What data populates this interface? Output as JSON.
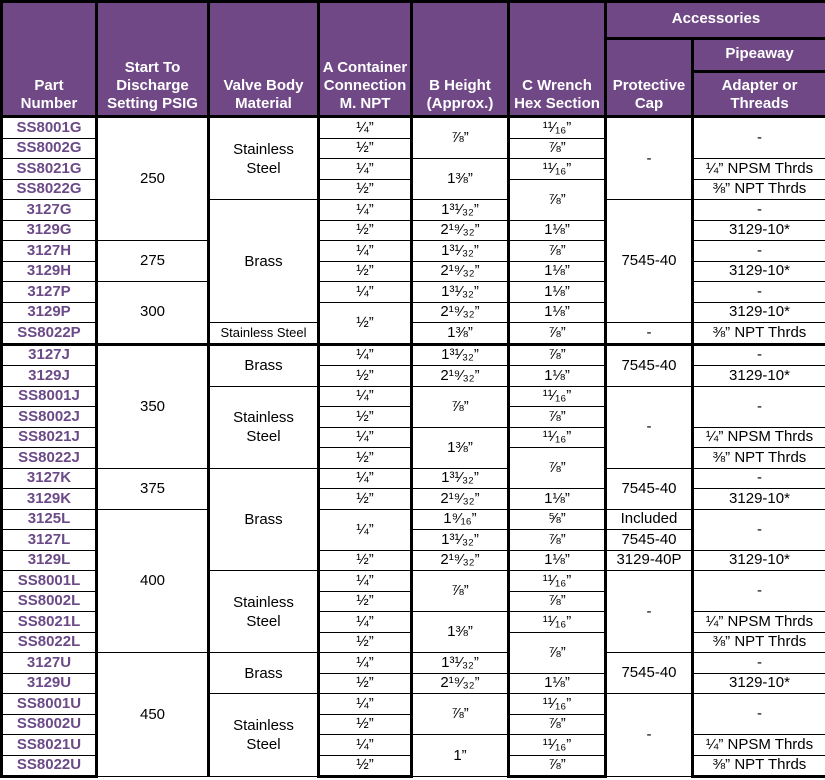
{
  "colors": {
    "header_bg": "#6f4885",
    "part_text": "#6b4a87"
  },
  "header": {
    "part_number": "Part Number",
    "start_to_discharge": "Start To Discharge Setting PSIG",
    "valve_body": "Valve Body Material",
    "a": "A Container Connection M. NPT",
    "b": "B Height (Approx.)",
    "c": "C Wrench Hex Section",
    "accessories": "Accessories",
    "protective_cap": "Protective Cap",
    "pipeaway": "Pipeaway",
    "adapter": "Adapter or Threads"
  },
  "part_numbers": [
    "SS8001G",
    "SS8002G",
    "SS8021G",
    "SS8022G",
    "3127G",
    "3129G",
    "3127H",
    "3129H",
    "3127P",
    "3129P",
    "SS8022P",
    "3127J",
    "3129J",
    "SS8001J",
    "SS8002J",
    "SS8021J",
    "SS8022J",
    "3127K",
    "3129K",
    "3125L",
    "3127L",
    "3129L",
    "SS8001L",
    "SS8002L",
    "SS8021L",
    "SS8022L",
    "3127U",
    "3129U",
    "SS8001U",
    "SS8002U",
    "SS8021U",
    "SS8022U"
  ],
  "pressure": [
    {
      "v": "250",
      "rows": 6
    },
    {
      "v": "275",
      "rows": 2
    },
    {
      "v": "300",
      "rows": 3
    },
    {
      "v": "350",
      "rows": 6
    },
    {
      "v": "375",
      "rows": 2
    },
    {
      "v": "400",
      "rows": 7
    },
    {
      "v": "450",
      "rows": 6
    }
  ],
  "valve_body": [
    {
      "v": "Stainless Steel",
      "rows": 4
    },
    {
      "v": "Brass",
      "rows": 6
    },
    {
      "v": "Stainless Steel",
      "rows": 1
    },
    {
      "v": "Brass",
      "rows": 2
    },
    {
      "v": "Stainless Steel",
      "rows": 4
    },
    {
      "v": "Brass",
      "rows": 5
    },
    {
      "v": "Stainless Steel",
      "rows": 4
    },
    {
      "v": "Brass",
      "rows": 2
    },
    {
      "v": "Stainless Steel",
      "rows": 4
    }
  ],
  "a": [
    {
      "v": "¼”",
      "rows": 1
    },
    {
      "v": "½”",
      "rows": 1
    },
    {
      "v": "¼”",
      "rows": 1
    },
    {
      "v": "½”",
      "rows": 1
    },
    {
      "v": "¼”",
      "rows": 1
    },
    {
      "v": "½”",
      "rows": 1
    },
    {
      "v": "¼”",
      "rows": 1
    },
    {
      "v": "½”",
      "rows": 1
    },
    {
      "v": "¼”",
      "rows": 1
    },
    {
      "v": "½”",
      "rows": 2
    },
    {
      "v": "¼”",
      "rows": 1
    },
    {
      "v": "½”",
      "rows": 1
    },
    {
      "v": "¼”",
      "rows": 1
    },
    {
      "v": "½”",
      "rows": 1
    },
    {
      "v": "¼”",
      "rows": 1
    },
    {
      "v": "½”",
      "rows": 1
    },
    {
      "v": "¼”",
      "rows": 1
    },
    {
      "v": "½”",
      "rows": 1
    },
    {
      "v": "¼”",
      "rows": 2
    },
    {
      "v": "½”",
      "rows": 1
    },
    {
      "v": "¼”",
      "rows": 1
    },
    {
      "v": "½”",
      "rows": 1
    },
    {
      "v": "¼”",
      "rows": 1
    },
    {
      "v": "½”",
      "rows": 1
    },
    {
      "v": "¼”",
      "rows": 1
    },
    {
      "v": "½”",
      "rows": 1
    },
    {
      "v": "¼”",
      "rows": 1
    },
    {
      "v": "½”",
      "rows": 1
    },
    {
      "v": "¼”",
      "rows": 1
    },
    {
      "v": "½”",
      "rows": 1
    }
  ],
  "b": [
    {
      "v": "⅞”",
      "rows": 2
    },
    {
      "v": "1⅜”",
      "rows": 2
    },
    {
      "v": "1³¹⁄₃₂”",
      "rows": 1
    },
    {
      "v": "2¹⁹⁄₃₂”",
      "rows": 1
    },
    {
      "v": "1³¹⁄₃₂”",
      "rows": 1
    },
    {
      "v": "2¹⁹⁄₃₂”",
      "rows": 1
    },
    {
      "v": "1³¹⁄₃₂”",
      "rows": 1
    },
    {
      "v": "2¹⁹⁄₃₂”",
      "rows": 1
    },
    {
      "v": "1⅜”",
      "rows": 1
    },
    {
      "v": "1³¹⁄₃₂”",
      "rows": 1
    },
    {
      "v": "2¹⁹⁄₃₂”",
      "rows": 1
    },
    {
      "v": "⅞”",
      "rows": 2
    },
    {
      "v": "1⅜”",
      "rows": 2
    },
    {
      "v": "1³¹⁄₃₂”",
      "rows": 1
    },
    {
      "v": "2¹⁹⁄₃₂”",
      "rows": 1
    },
    {
      "v": "1⁹⁄₁₆”",
      "rows": 1
    },
    {
      "v": "1³¹⁄₃₂”",
      "rows": 1
    },
    {
      "v": "2¹⁹⁄₃₂”",
      "rows": 1
    },
    {
      "v": "⅞”",
      "rows": 2
    },
    {
      "v": "1⅜”",
      "rows": 2
    },
    {
      "v": "1³¹⁄₃₂”",
      "rows": 1
    },
    {
      "v": "2¹⁹⁄₃₂”",
      "rows": 1
    },
    {
      "v": "⅞”",
      "rows": 2
    },
    {
      "v": "1”",
      "rows": 2
    }
  ],
  "c": [
    {
      "v": "¹¹⁄₁₆”",
      "rows": 1
    },
    {
      "v": "⅞”",
      "rows": 1
    },
    {
      "v": "¹¹⁄₁₆”",
      "rows": 1
    },
    {
      "v": "⅞”",
      "rows": 2
    },
    {
      "v": "1⅛”",
      "rows": 1
    },
    {
      "v": "⅞”",
      "rows": 1
    },
    {
      "v": "1⅛”",
      "rows": 1
    },
    {
      "v": "1⅛”",
      "rows": 1
    },
    {
      "v": "1⅛”",
      "rows": 1
    },
    {
      "v": "⅞”",
      "rows": 1
    },
    {
      "v": "⅞”",
      "rows": 1
    },
    {
      "v": "1⅛”",
      "rows": 1
    },
    {
      "v": "¹¹⁄₁₆”",
      "rows": 1
    },
    {
      "v": "⅞”",
      "rows": 1
    },
    {
      "v": "¹¹⁄₁₆”",
      "rows": 1
    },
    {
      "v": "⅞”",
      "rows": 2
    },
    {
      "v": "1⅛”",
      "rows": 1
    },
    {
      "v": "⅝”",
      "rows": 1
    },
    {
      "v": "⅞”",
      "rows": 1
    },
    {
      "v": "1⅛”",
      "rows": 1
    },
    {
      "v": "¹¹⁄₁₆”",
      "rows": 1
    },
    {
      "v": "⅞”",
      "rows": 1
    },
    {
      "v": "¹¹⁄₁₆”",
      "rows": 1
    },
    {
      "v": "⅞”",
      "rows": 2
    },
    {
      "v": "1⅛”",
      "rows": 1
    },
    {
      "v": "¹¹⁄₁₆”",
      "rows": 1
    },
    {
      "v": "⅞”",
      "rows": 1
    },
    {
      "v": "¹¹⁄₁₆”",
      "rows": 1
    },
    {
      "v": "⅞”",
      "rows": 1
    }
  ],
  "cap": [
    {
      "v": "-",
      "rows": 4
    },
    {
      "v": "7545-40",
      "rows": 6
    },
    {
      "v": "-",
      "rows": 1
    },
    {
      "v": "7545-40",
      "rows": 2
    },
    {
      "v": "-",
      "rows": 4
    },
    {
      "v": "7545-40",
      "rows": 2
    },
    {
      "v": "Included",
      "rows": 1
    },
    {
      "v": "7545-40",
      "rows": 1
    },
    {
      "v": "3129-40P",
      "rows": 1
    },
    {
      "v": "-",
      "rows": 4
    },
    {
      "v": "7545-40",
      "rows": 2
    },
    {
      "v": "-",
      "rows": 4
    }
  ],
  "adapter": [
    {
      "v": "-",
      "rows": 2
    },
    {
      "v": "¼” NPSM Thrds",
      "rows": 1
    },
    {
      "v": "⅜” NPT Thrds",
      "rows": 1
    },
    {
      "v": "-",
      "rows": 1
    },
    {
      "v": "3129-10*",
      "rows": 1
    },
    {
      "v": "-",
      "rows": 1
    },
    {
      "v": "3129-10*",
      "rows": 1
    },
    {
      "v": "-",
      "rows": 1
    },
    {
      "v": "3129-10*",
      "rows": 1
    },
    {
      "v": "⅜” NPT Thrds",
      "rows": 1
    },
    {
      "v": "-",
      "rows": 1
    },
    {
      "v": "3129-10*",
      "rows": 1
    },
    {
      "v": "-",
      "rows": 2
    },
    {
      "v": "¼” NPSM Thrds",
      "rows": 1
    },
    {
      "v": "⅜” NPT Thrds",
      "rows": 1
    },
    {
      "v": "-",
      "rows": 1
    },
    {
      "v": "3129-10*",
      "rows": 1
    },
    {
      "v": "-",
      "rows": 2
    },
    {
      "v": "3129-10*",
      "rows": 1
    },
    {
      "v": "-",
      "rows": 2
    },
    {
      "v": "¼” NPSM Thrds",
      "rows": 1
    },
    {
      "v": "⅜” NPT Thrds",
      "rows": 1
    },
    {
      "v": "-",
      "rows": 1
    },
    {
      "v": "3129-10*",
      "rows": 1
    },
    {
      "v": "-",
      "rows": 2
    },
    {
      "v": "¼” NPSM Thrds",
      "rows": 1
    },
    {
      "v": "⅜” NPT Thrds",
      "rows": 1
    }
  ]
}
